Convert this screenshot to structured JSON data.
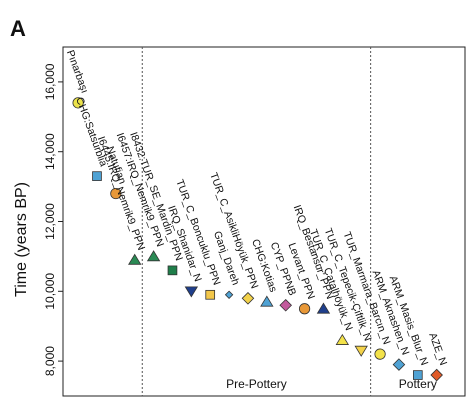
{
  "panel_label": "A",
  "chart_data": {
    "type": "scatter",
    "ylabel": "Time (years BP)",
    "ylim": [
      7000,
      17000
    ],
    "yticks": [
      8000,
      10000,
      12000,
      14000,
      16000
    ],
    "ytick_labels": [
      "8,000",
      "10,000",
      "12,000",
      "14,000",
      "16,000"
    ],
    "grid": false,
    "periods": [
      {
        "name": "Pre-Pottery",
        "x_start": 4.4,
        "x_end": 16.5
      },
      {
        "name": "Pottery",
        "x_start": 16.5,
        "x_end": 21.5
      }
    ],
    "points": [
      {
        "label": "Pınarbaşı",
        "x": 1,
        "y": 15400,
        "color": "#ece34a",
        "shape": "circle"
      },
      {
        "label": "CHG:Satsurblia",
        "x": 2,
        "y": 13300,
        "color": "#4fa2d4",
        "shape": "square"
      },
      {
        "label": "Natufian",
        "x": 3,
        "y": 12800,
        "color": "#e89838",
        "shape": "circle"
      },
      {
        "label": "I6445:IRQ_Nemrik9_PPN",
        "x": 4,
        "y": 10900,
        "color": "#2a8a54",
        "shape": "triangle"
      },
      {
        "label": "I6457:IRQ_Nemrik9_PPN",
        "x": 5,
        "y": 11000,
        "color": "#2a8a54",
        "shape": "triangle"
      },
      {
        "label": "I8432:TUR_SE_Mardin_PPN",
        "x": 6,
        "y": 10600,
        "color": "#1f7e4a",
        "shape": "square"
      },
      {
        "label": "IRQ_Shanidar_N",
        "x": 7,
        "y": 10000,
        "color": "#1f3f8c",
        "shape": "triangle-down"
      },
      {
        "label": "TUR_C_Boncuklu_PPN",
        "x": 8,
        "y": 9900,
        "color": "#f3c74a",
        "shape": "square"
      },
      {
        "label": "Ganj_Dareh",
        "x": 9,
        "y": 9900,
        "color": "#4fa2d4",
        "shape": "diamond-small"
      },
      {
        "label": "TUR_C_AsikliHöyük_PPN",
        "x": 10,
        "y": 9800,
        "color": "#f3d24a",
        "shape": "diamond"
      },
      {
        "label": "CHG:Kotias",
        "x": 11,
        "y": 9700,
        "color": "#4fa2d4",
        "shape": "triangle"
      },
      {
        "label": "CYP_PPNB",
        "x": 12,
        "y": 9600,
        "color": "#c25a9c",
        "shape": "diamond"
      },
      {
        "label": "Levant_PPN",
        "x": 13,
        "y": 9500,
        "color": "#e89838",
        "shape": "circle"
      },
      {
        "label": "IRQ_Bestansur_PPN",
        "x": 14,
        "y": 9500,
        "color": "#1f3f8c",
        "shape": "triangle"
      },
      {
        "label": "TUR_C_Çatalhöyük_N",
        "x": 15,
        "y": 8600,
        "color": "#f3e24a",
        "shape": "triangle"
      },
      {
        "label": "TUR_C_Tepecik-Çiftlik_N",
        "x": 16,
        "y": 8300,
        "color": "#f3d24a",
        "shape": "triangle-down"
      },
      {
        "label": "TUR_Marmara_Barcın_N",
        "x": 17,
        "y": 8200,
        "color": "#f3e24a",
        "shape": "circle"
      },
      {
        "label": "ARM_Aknashen_N",
        "x": 18,
        "y": 7900,
        "color": "#4fa2d4",
        "shape": "diamond"
      },
      {
        "label": "ARM_Masis_Blur_N",
        "x": 19,
        "y": 7600,
        "color": "#4fa2d4",
        "shape": "square"
      },
      {
        "label": "AZE_N",
        "x": 20,
        "y": 7600,
        "color": "#e05a28",
        "shape": "diamond"
      }
    ]
  }
}
